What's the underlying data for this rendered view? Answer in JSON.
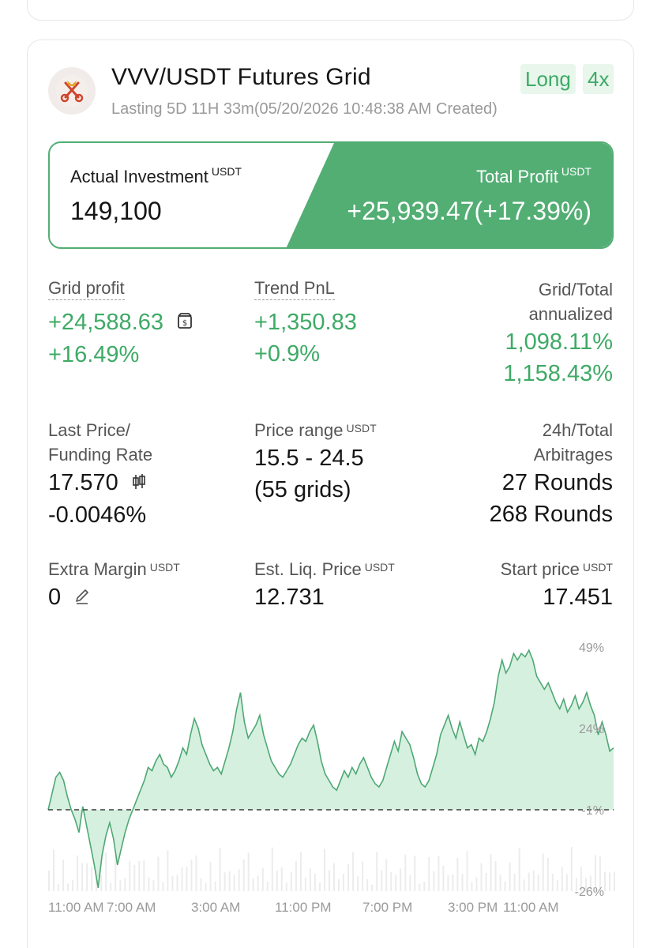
{
  "header": {
    "title": "VVV/USDT Futures Grid",
    "subtitle": "Lasting 5D 11H 33m(05/20/2026 10:48:38 AM Created)",
    "badge_direction": "Long",
    "badge_leverage": "4x",
    "logo_icon": "crossed-keys-icon"
  },
  "summary": {
    "investment_label": "Actual Investment",
    "investment_unit": "USDT",
    "investment_value": "149,100",
    "profit_label": "Total Profit",
    "profit_unit": "USDT",
    "profit_value": "+25,939.47(+17.39%)"
  },
  "stats": {
    "grid_profit_label": "Grid profit",
    "grid_profit_value": "+24,588.63",
    "grid_profit_pct": "+16.49%",
    "trend_pnl_label": "Trend PnL",
    "trend_pnl_value": "+1,350.83",
    "trend_pnl_pct": "+0.9%",
    "annualized_label_1": "Grid/Total",
    "annualized_label_2": "annualized",
    "annualized_grid": "1,098.11%",
    "annualized_total": "1,158.43%",
    "last_price_label_1": "Last Price/",
    "last_price_label_2": "Funding Rate",
    "last_price_value": "17.570",
    "funding_rate_value": "-0.0046%",
    "price_range_label": "Price range",
    "price_range_unit": "USDT",
    "price_range_value": "15.5 - 24.5",
    "price_range_grids": "(55 grids)",
    "arb_label_1": "24h/Total",
    "arb_label_2": "Arbitrages",
    "arb_24h": "27 Rounds",
    "arb_total": "268 Rounds",
    "extra_margin_label": "Extra Margin",
    "extra_margin_unit": "USDT",
    "extra_margin_value": "0",
    "liq_price_label": "Est. Liq. Price",
    "liq_price_unit": "USDT",
    "liq_price_value": "12.731",
    "start_price_label": "Start price",
    "start_price_unit": "USDT",
    "start_price_value": "17.451"
  },
  "colors": {
    "green": "#3eaa66",
    "green_fill": "#53ae74",
    "area_fill": "#d6f0df"
  },
  "chart_data": {
    "type": "area",
    "y_ticks": [
      "49%",
      "24%",
      "-1%",
      "-26%"
    ],
    "ylim": [
      -26,
      49
    ],
    "baseline": -1,
    "x_ticks": [
      "11:00 AM",
      "7:00 AM",
      "3:00 AM",
      "11:00 PM",
      "7:00 PM",
      "3:00 PM",
      "11:00 AM"
    ],
    "values": [
      -1,
      4,
      9,
      10.5,
      8,
      3,
      -1,
      -4,
      -8,
      0,
      -6,
      -12,
      -18,
      -25,
      -15,
      -9,
      -5,
      -10,
      -18,
      -13,
      -8,
      -4,
      -1,
      2,
      5,
      8,
      12,
      11,
      14,
      16,
      13,
      12,
      9,
      11,
      14,
      18,
      16,
      22,
      27,
      24,
      19,
      16,
      13,
      11,
      12,
      10,
      14,
      18,
      23,
      30,
      35,
      26,
      21,
      23,
      25,
      28,
      22,
      18,
      14,
      12,
      10,
      9,
      11,
      13,
      16,
      19,
      21,
      20,
      23,
      25,
      20,
      14,
      10,
      8,
      6,
      5,
      8,
      11,
      9,
      12,
      10,
      13,
      15,
      12,
      9,
      7,
      6,
      8,
      12,
      16,
      20,
      17,
      23,
      21,
      19,
      15,
      10,
      7,
      6,
      8,
      12,
      16,
      22,
      25,
      28,
      24,
      21,
      26,
      22,
      18,
      19,
      16,
      21,
      20,
      23,
      27,
      32,
      40,
      45,
      41,
      43,
      47,
      45,
      47,
      46,
      48,
      45,
      40,
      38,
      36,
      38,
      35,
      32,
      30,
      33,
      29,
      31,
      34,
      30,
      32,
      35,
      31,
      28,
      22,
      26,
      22,
      17,
      18
    ]
  }
}
